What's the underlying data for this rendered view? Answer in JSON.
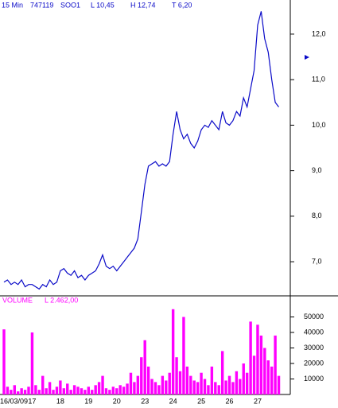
{
  "header": {
    "interval": "15 Min",
    "code": "747119",
    "symbol": "SOO1",
    "low": "L  10,45",
    "high": "H  12,74",
    "total": "T  6,20"
  },
  "chart_data": [
    {
      "type": "line",
      "color": "#0a0ac8",
      "values": [
        6.55,
        6.6,
        6.5,
        6.55,
        6.5,
        6.6,
        6.45,
        6.5,
        6.5,
        6.45,
        6.4,
        6.5,
        6.45,
        6.6,
        6.5,
        6.55,
        6.8,
        6.85,
        6.75,
        6.7,
        6.8,
        6.65,
        6.7,
        6.6,
        6.7,
        6.75,
        6.8,
        6.95,
        7.15,
        6.9,
        6.85,
        6.9,
        6.8,
        6.9,
        7.0,
        7.1,
        7.2,
        7.3,
        7.5,
        8.1,
        8.7,
        9.1,
        9.15,
        9.2,
        9.1,
        9.15,
        9.1,
        9.2,
        9.8,
        10.3,
        9.9,
        9.7,
        9.8,
        9.6,
        9.5,
        9.65,
        9.9,
        10.0,
        9.95,
        10.1,
        10.0,
        9.9,
        10.3,
        10.05,
        10.0,
        10.1,
        10.3,
        10.2,
        10.6,
        10.4,
        10.8,
        11.2,
        12.2,
        12.5,
        11.9,
        11.6,
        11.0,
        10.5,
        10.4
      ],
      "ylim": [
        6.25,
        12.75
      ],
      "yticks": [
        {
          "value": 7,
          "label": "7,0"
        },
        {
          "value": 8,
          "label": "8,0"
        },
        {
          "value": 9,
          "label": "9,0"
        },
        {
          "value": 10,
          "label": "10,0"
        },
        {
          "value": 11,
          "label": "11,0"
        },
        {
          "value": 12,
          "label": "12,0"
        }
      ]
    },
    {
      "type": "bar",
      "title": "VOLUME",
      "subtitle": "L  2.462,00",
      "color": "#ff00ff",
      "categories": [
        "16/03/09",
        null,
        null,
        null,
        null,
        null,
        null,
        null,
        "17",
        null,
        null,
        null,
        null,
        null,
        null,
        null,
        "18",
        null,
        null,
        null,
        null,
        null,
        null,
        null,
        "19",
        null,
        null,
        null,
        null,
        null,
        null,
        null,
        "20",
        null,
        null,
        null,
        null,
        null,
        null,
        null,
        "23",
        null,
        null,
        null,
        null,
        null,
        null,
        null,
        "24",
        null,
        null,
        null,
        null,
        null,
        null,
        null,
        "25",
        null,
        null,
        null,
        null,
        null,
        null,
        null,
        "26",
        null,
        null,
        null,
        null,
        null,
        null,
        null,
        "27",
        null,
        null,
        null,
        null,
        null,
        null
      ],
      "values": [
        42000,
        5000,
        3000,
        6000,
        2000,
        4000,
        3000,
        5000,
        40000,
        6000,
        3000,
        12000,
        4000,
        8000,
        3000,
        5000,
        9000,
        4000,
        7000,
        3000,
        6000,
        5000,
        4000,
        3000,
        5000,
        3000,
        6000,
        8000,
        12000,
        4000,
        3000,
        5000,
        4000,
        6000,
        5000,
        7000,
        14000,
        8000,
        12000,
        24000,
        35000,
        18000,
        10000,
        8000,
        6000,
        12000,
        9000,
        14000,
        55000,
        24000,
        15000,
        50000,
        18000,
        12000,
        9000,
        8000,
        14000,
        10000,
        6000,
        18000,
        8000,
        6000,
        28000,
        9000,
        12000,
        8000,
        15000,
        10000,
        20000,
        14000,
        47000,
        25000,
        45000,
        38000,
        30000,
        22000,
        18000,
        38000,
        12000
      ],
      "ylim": [
        0,
        63600
      ],
      "yticks": [
        10000,
        20000,
        30000,
        40000,
        50000
      ]
    }
  ]
}
